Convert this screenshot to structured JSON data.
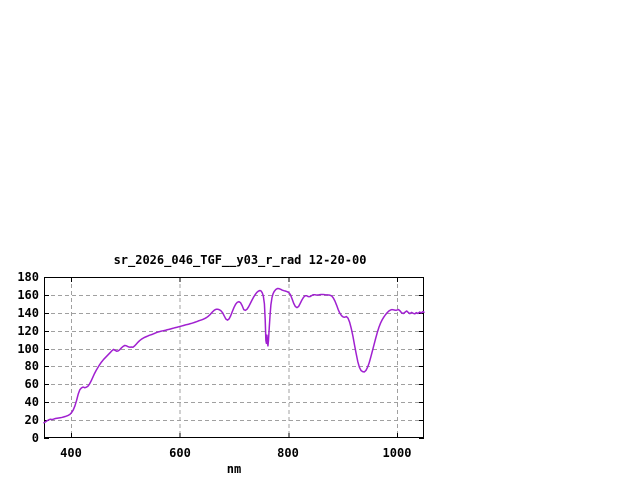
{
  "chart_data": {
    "type": "line",
    "title": "sr_2026_046_TGF__y03_r_rad 12-20-00",
    "xlabel": "nm",
    "ylabel": "",
    "xlim": [
      350,
      1050
    ],
    "ylim": [
      0,
      180
    ],
    "xticks": [
      400,
      600,
      800,
      1000
    ],
    "yticks": [
      0,
      20,
      40,
      60,
      80,
      100,
      120,
      140,
      160,
      180
    ],
    "grid": true,
    "legend_position": "none",
    "line_color": "#a020d0",
    "grid_color": "#a0a0a0",
    "border_color": "#000000",
    "background_color": "#ffffff",
    "series": [
      {
        "name": "sr_2026_046_TGF__y03_r_rad",
        "points": [
          [
            350,
            17
          ],
          [
            353,
            18.2
          ],
          [
            356,
            19.4
          ],
          [
            359,
            20.4
          ],
          [
            362,
            21
          ],
          [
            365,
            20.6
          ],
          [
            368,
            21.2
          ],
          [
            371,
            21.8
          ],
          [
            374,
            22.1
          ],
          [
            377,
            22.4
          ],
          [
            380,
            22.7
          ],
          [
            383,
            23
          ],
          [
            386,
            23.5
          ],
          [
            389,
            24
          ],
          [
            392,
            24.7
          ],
          [
            395,
            25.4
          ],
          [
            398,
            26.6
          ],
          [
            401,
            28.6
          ],
          [
            404,
            31.5
          ],
          [
            407,
            36
          ],
          [
            410,
            42
          ],
          [
            413,
            49
          ],
          [
            416,
            54
          ],
          [
            419,
            56
          ],
          [
            422,
            57
          ],
          [
            425,
            56.2
          ],
          [
            428,
            56.8
          ],
          [
            431,
            58
          ],
          [
            434,
            60.5
          ],
          [
            437,
            64
          ],
          [
            440,
            68
          ],
          [
            443,
            72
          ],
          [
            446,
            75.5
          ],
          [
            449,
            78.5
          ],
          [
            452,
            81.5
          ],
          [
            456,
            85
          ],
          [
            460,
            88
          ],
          [
            464,
            90.5
          ],
          [
            468,
            93
          ],
          [
            472,
            95.5
          ],
          [
            475,
            97.5
          ],
          [
            478,
            99
          ],
          [
            481,
            98
          ],
          [
            484,
            97
          ],
          [
            487,
            97.5
          ],
          [
            490,
            99
          ],
          [
            493,
            101
          ],
          [
            496,
            102.5
          ],
          [
            499,
            103.5
          ],
          [
            502,
            103
          ],
          [
            505,
            102
          ],
          [
            508,
            101.5
          ],
          [
            511,
            101.8
          ],
          [
            514,
            101.5
          ],
          [
            517,
            103
          ],
          [
            520,
            105
          ],
          [
            523,
            107
          ],
          [
            526,
            108.8
          ],
          [
            529,
            110.2
          ],
          [
            532,
            111.4
          ],
          [
            535,
            112.4
          ],
          [
            538,
            113.2
          ],
          [
            541,
            114
          ],
          [
            544,
            114.8
          ],
          [
            547,
            115.4
          ],
          [
            550,
            116
          ],
          [
            553,
            116.8
          ],
          [
            556,
            117.6
          ],
          [
            559,
            118.3
          ],
          [
            562,
            118.8
          ],
          [
            565,
            119.3
          ],
          [
            568,
            119.7
          ],
          [
            571,
            120.1
          ],
          [
            574,
            120.5
          ],
          [
            577,
            121
          ],
          [
            580,
            121.4
          ],
          [
            583,
            121.9
          ],
          [
            586,
            122.4
          ],
          [
            589,
            122.9
          ],
          [
            592,
            123.4
          ],
          [
            595,
            123.8
          ],
          [
            598,
            124.3
          ],
          [
            601,
            124.8
          ],
          [
            604,
            125.3
          ],
          [
            607,
            125.8
          ],
          [
            610,
            126.3
          ],
          [
            613,
            126.8
          ],
          [
            616,
            127.2
          ],
          [
            619,
            127.7
          ],
          [
            622,
            128.2
          ],
          [
            625,
            128.8
          ],
          [
            628,
            129.4
          ],
          [
            631,
            130
          ],
          [
            634,
            130.8
          ],
          [
            637,
            131.4
          ],
          [
            640,
            132
          ],
          [
            643,
            132.7
          ],
          [
            646,
            133.5
          ],
          [
            649,
            134.5
          ],
          [
            652,
            135.8
          ],
          [
            655,
            137.4
          ],
          [
            658,
            139.4
          ],
          [
            661,
            141.4
          ],
          [
            664,
            143
          ],
          [
            667,
            143.9
          ],
          [
            670,
            144
          ],
          [
            673,
            143.4
          ],
          [
            676,
            142.2
          ],
          [
            679,
            140
          ],
          [
            682,
            136.5
          ],
          [
            685,
            133
          ],
          [
            688,
            131.8
          ],
          [
            691,
            133.2
          ],
          [
            694,
            136.8
          ],
          [
            697,
            141.5
          ],
          [
            700,
            146
          ],
          [
            703,
            149.5
          ],
          [
            706,
            151.7
          ],
          [
            709,
            152.4
          ],
          [
            712,
            151.3
          ],
          [
            715,
            148
          ],
          [
            718,
            143.5
          ],
          [
            721,
            142.7
          ],
          [
            724,
            144
          ],
          [
            727,
            146.8
          ],
          [
            730,
            150.4
          ],
          [
            733,
            154
          ],
          [
            736,
            157.4
          ],
          [
            739,
            160.3
          ],
          [
            742,
            162.7
          ],
          [
            745,
            164.2
          ],
          [
            748,
            164.9
          ],
          [
            750,
            164.3
          ],
          [
            752,
            162.4
          ],
          [
            754,
            158.8
          ],
          [
            756,
            150
          ],
          [
            757.5,
            132
          ],
          [
            758.7,
            109
          ],
          [
            759.7,
            105.8
          ],
          [
            760.7,
            115
          ],
          [
            761.7,
            107
          ],
          [
            762.5,
            103
          ],
          [
            763.5,
            109
          ],
          [
            765,
            124
          ],
          [
            766.5,
            138
          ],
          [
            768,
            149
          ],
          [
            770,
            157
          ],
          [
            772,
            161.3
          ],
          [
            774,
            163.8
          ],
          [
            777,
            166
          ],
          [
            780,
            167.2
          ],
          [
            783,
            167
          ],
          [
            786,
            166.2
          ],
          [
            789,
            165.3
          ],
          [
            792,
            164.7
          ],
          [
            795,
            164.2
          ],
          [
            798,
            163.6
          ],
          [
            801,
            162.6
          ],
          [
            804,
            160.2
          ],
          [
            807,
            155.5
          ],
          [
            810,
            150.5
          ],
          [
            813,
            147
          ],
          [
            816,
            145.8
          ],
          [
            819,
            147
          ],
          [
            822,
            150.5
          ],
          [
            825,
            154.2
          ],
          [
            828,
            157.2
          ],
          [
            831,
            159
          ],
          [
            834,
            159
          ],
          [
            837,
            158
          ],
          [
            840,
            158
          ],
          [
            843,
            159.2
          ],
          [
            846,
            160.2
          ],
          [
            849,
            160.2
          ],
          [
            852,
            159.8
          ],
          [
            856,
            160
          ],
          [
            860,
            160.4
          ],
          [
            864,
            160.5
          ],
          [
            868,
            160.1
          ],
          [
            872,
            160
          ],
          [
            876,
            159.8
          ],
          [
            880,
            158.8
          ],
          [
            883,
            156.5
          ],
          [
            886,
            153
          ],
          [
            889,
            148.5
          ],
          [
            892,
            143.5
          ],
          [
            895,
            139.5
          ],
          [
            898,
            136.8
          ],
          [
            901,
            135.3
          ],
          [
            904,
            135
          ],
          [
            907,
            135.8
          ],
          [
            910,
            134
          ],
          [
            913,
            129.5
          ],
          [
            916,
            122.5
          ],
          [
            919,
            114
          ],
          [
            922,
            104
          ],
          [
            925,
            94.5
          ],
          [
            928,
            85.5
          ],
          [
            931,
            79
          ],
          [
            934,
            75.5
          ],
          [
            937,
            74.2
          ],
          [
            940,
            73.8
          ],
          [
            943,
            75.5
          ],
          [
            946,
            79
          ],
          [
            949,
            84
          ],
          [
            952,
            90.5
          ],
          [
            955,
            97.5
          ],
          [
            958,
            104.5
          ],
          [
            961,
            111.5
          ],
          [
            964,
            118
          ],
          [
            967,
            123.8
          ],
          [
            970,
            128.5
          ],
          [
            973,
            132.2
          ],
          [
            976,
            135.2
          ],
          [
            979,
            137.8
          ],
          [
            982,
            140
          ],
          [
            985,
            141.8
          ],
          [
            988,
            143
          ],
          [
            991,
            143.6
          ],
          [
            994,
            143.3
          ],
          [
            997,
            142.8
          ],
          [
            1000,
            143
          ],
          [
            1003,
            143.6
          ],
          [
            1006,
            142
          ],
          [
            1009,
            139.8
          ],
          [
            1012,
            139.2
          ],
          [
            1015,
            140.6
          ],
          [
            1018,
            142
          ],
          [
            1021,
            140.4
          ],
          [
            1024,
            139
          ],
          [
            1027,
            140.4
          ],
          [
            1030,
            139.4
          ],
          [
            1033,
            138.8
          ],
          [
            1036,
            140.2
          ],
          [
            1039,
            139.2
          ],
          [
            1042,
            140.8
          ],
          [
            1045,
            139.8
          ],
          [
            1048,
            141.4
          ],
          [
            1050,
            140.6
          ]
        ]
      }
    ]
  }
}
